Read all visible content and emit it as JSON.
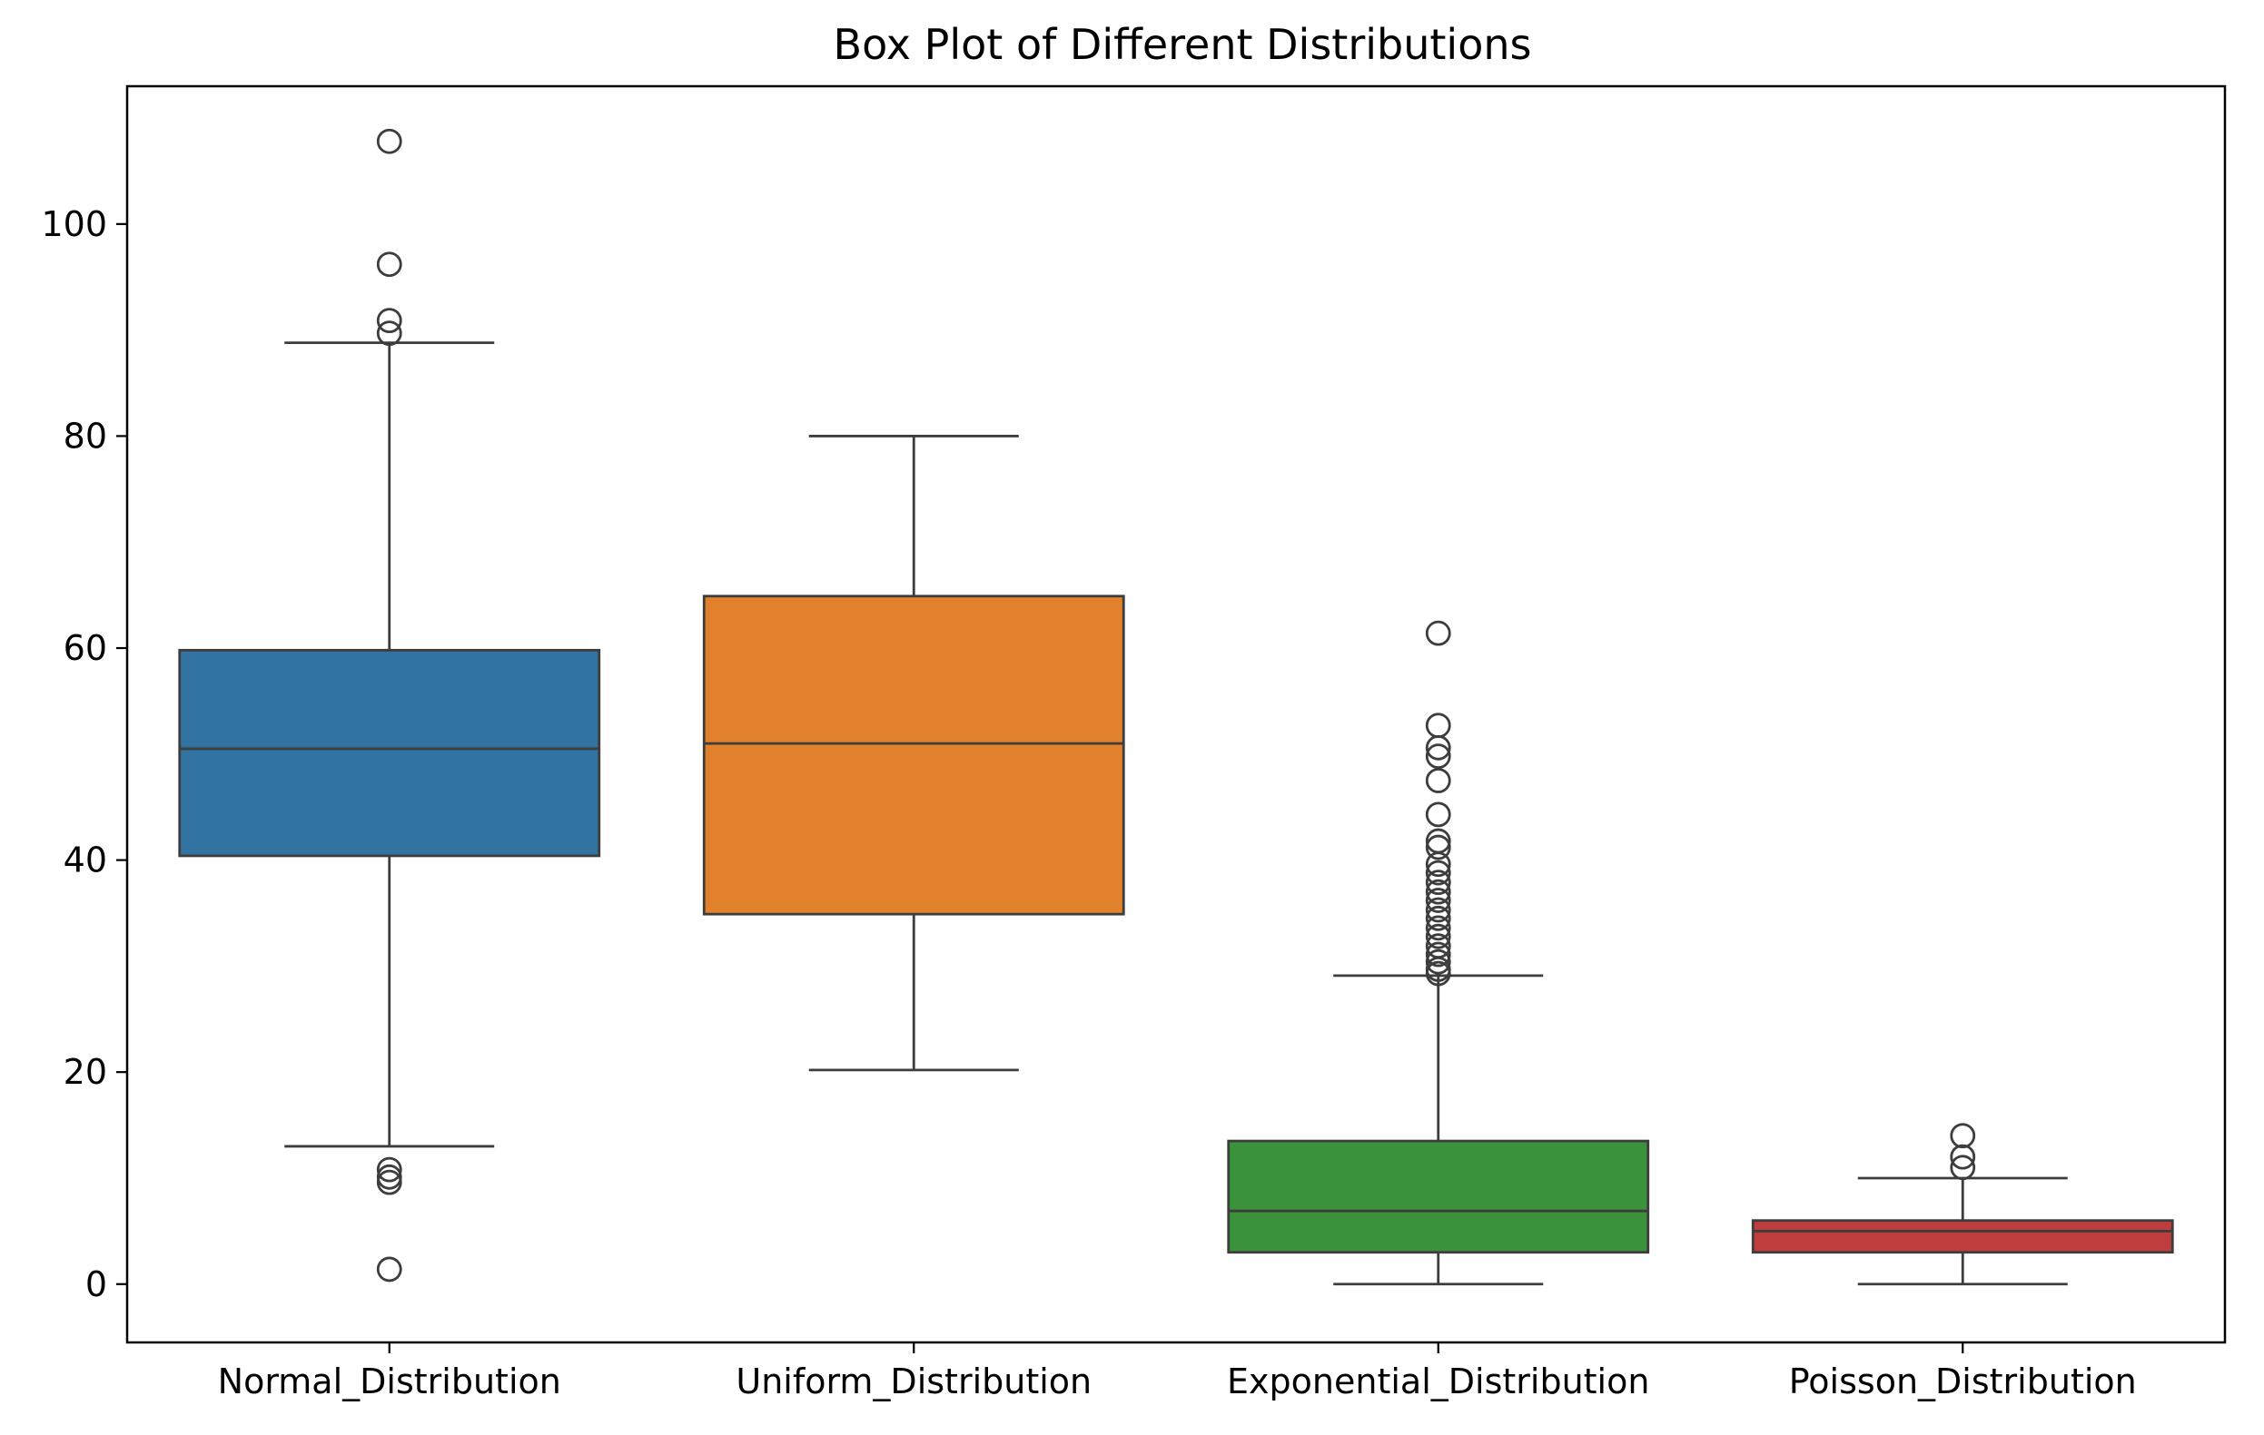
{
  "chart_data": {
    "type": "box",
    "title": "Box Plot of Different Distributions",
    "xlabel": "",
    "ylabel": "",
    "ylim": [
      -5.5,
      113
    ],
    "yticks": [
      0,
      20,
      40,
      60,
      80,
      100
    ],
    "grid": false,
    "legend": "none",
    "categories": [
      "Normal_Distribution",
      "Uniform_Distribution",
      "Exponential_Distribution",
      "Poisson_Distribution"
    ],
    "boxes": [
      {
        "category": "Normal_Distribution",
        "color": "#3274a1",
        "whisker_low": 13.0,
        "q1": 40.4,
        "median": 50.5,
        "q3": 59.8,
        "whisker_high": 88.8,
        "outliers": [
          107.8,
          96.2,
          90.9,
          89.7,
          10.8,
          10.1,
          9.6,
          1.4
        ]
      },
      {
        "category": "Uniform_Distribution",
        "color": "#e1812c",
        "whisker_low": 20.2,
        "q1": 34.9,
        "median": 51.0,
        "q3": 64.9,
        "whisker_high": 80.0,
        "outliers": []
      },
      {
        "category": "Exponential_Distribution",
        "color": "#3a923a",
        "whisker_low": 0.0,
        "q1": 3.0,
        "median": 6.9,
        "q3": 13.5,
        "whisker_high": 29.1,
        "outliers": [
          61.4,
          52.7,
          50.6,
          49.8,
          47.5,
          44.3,
          41.8,
          41.2,
          39.6,
          38.8,
          37.9,
          37.0,
          36.2,
          35.3,
          34.5,
          33.6,
          32.8,
          31.9,
          31.1,
          30.4,
          29.7,
          29.3
        ]
      },
      {
        "category": "Poisson_Distribution",
        "color": "#c03d3e",
        "whisker_low": 0.0,
        "q1": 3.0,
        "median": 5.0,
        "q3": 6.0,
        "whisker_high": 10.0,
        "outliers": [
          14.0,
          12.0,
          11.0
        ]
      }
    ]
  }
}
